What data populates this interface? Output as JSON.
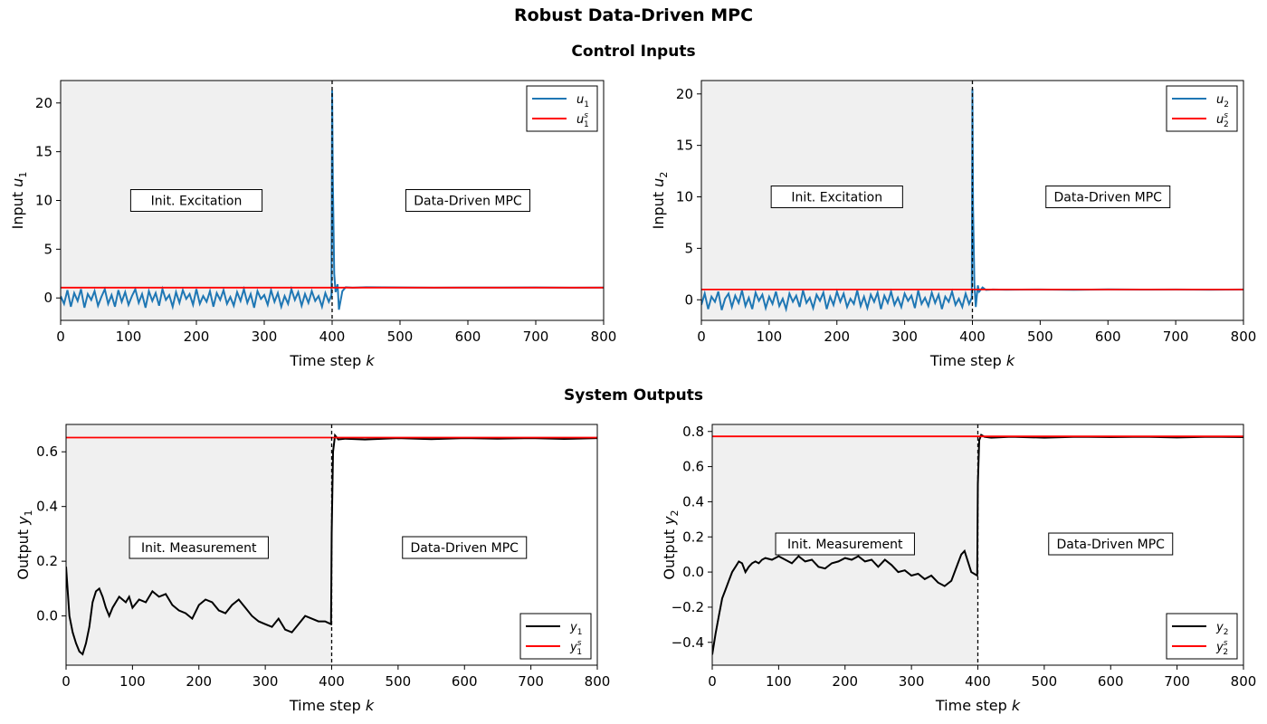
{
  "figure_title": "Robust Data-Driven MPC",
  "row_titles": [
    "Control Inputs",
    "System Outputs"
  ],
  "colors": {
    "input_series": "#1f77b4",
    "setpoint": "#ff0000",
    "output_series": "#000000",
    "excitation_shade": "#f0f0f0"
  },
  "chart_data": [
    {
      "type": "line",
      "ylabel_main": "Input ",
      "ylabel_var": "u",
      "ylabel_sub": "1",
      "xlabel_main": "Time step ",
      "xlabel_var": "k",
      "xlim": [
        0,
        800
      ],
      "ylim": [
        -2.3,
        22.3
      ],
      "xticks": [
        0,
        100,
        200,
        300,
        400,
        500,
        600,
        700,
        800
      ],
      "yticks": [
        0,
        5,
        10,
        15,
        20
      ],
      "switch_at": 400,
      "phase_labels": [
        "Init. Excitation",
        "Data-Driven MPC"
      ],
      "phase_label_y": 10,
      "legend_position": "top-right",
      "series": [
        {
          "name": "u",
          "sub": "1",
          "sup": "",
          "kind": "signal",
          "style": "input",
          "x": [
            0,
            5,
            10,
            15,
            20,
            25,
            30,
            35,
            40,
            45,
            50,
            55,
            60,
            65,
            70,
            75,
            80,
            85,
            90,
            95,
            100,
            105,
            110,
            115,
            120,
            125,
            130,
            135,
            140,
            145,
            150,
            155,
            160,
            165,
            170,
            175,
            180,
            185,
            190,
            195,
            200,
            205,
            210,
            215,
            220,
            225,
            230,
            235,
            240,
            245,
            250,
            255,
            260,
            265,
            270,
            275,
            280,
            285,
            290,
            295,
            300,
            305,
            310,
            315,
            320,
            325,
            330,
            335,
            340,
            345,
            350,
            355,
            360,
            365,
            370,
            375,
            380,
            385,
            390,
            395,
            399,
            400,
            401,
            403,
            405,
            408,
            410,
            415,
            420,
            430,
            450,
            500,
            550,
            600,
            650,
            700,
            750,
            800
          ],
          "y": [
            0.2,
            -0.6,
            0.8,
            -0.9,
            0.5,
            -0.3,
            0.9,
            -1.0,
            0.4,
            -0.2,
            0.7,
            -0.8,
            0.1,
            0.9,
            -0.6,
            0.3,
            -0.9,
            0.8,
            -0.4,
            0.6,
            -0.7,
            0.2,
            0.9,
            -0.5,
            0.4,
            -1.0,
            0.7,
            -0.3,
            0.5,
            -0.8,
            0.9,
            -0.2,
            0.3,
            -0.9,
            0.6,
            -0.5,
            0.8,
            -0.1,
            0.4,
            -0.7,
            0.9,
            -0.6,
            0.2,
            -0.4,
            0.7,
            -0.9,
            0.5,
            -0.2,
            0.8,
            -0.6,
            0.1,
            -0.8,
            0.6,
            -0.3,
            0.9,
            -0.5,
            0.4,
            -1.0,
            0.7,
            -0.1,
            0.3,
            -0.7,
            0.8,
            -0.4,
            0.5,
            -0.9,
            0.2,
            -0.6,
            0.9,
            -0.2,
            0.6,
            -0.8,
            0.4,
            -0.5,
            0.7,
            -0.3,
            0.2,
            -0.9,
            0.5,
            -0.4,
            0.3,
            21.3,
            12.0,
            2.5,
            0.6,
            1.4,
            -1.2,
            0.7,
            1.1,
            1.05,
            1.1,
            1.08,
            1.05,
            1.07,
            1.06,
            1.08,
            1.05,
            1.06
          ]
        },
        {
          "name": "u",
          "sub": "1",
          "sup": "s",
          "kind": "setpoint",
          "style": "setpoint",
          "x": [
            0,
            800
          ],
          "y": [
            1.06,
            1.06
          ]
        }
      ]
    },
    {
      "type": "line",
      "ylabel_main": "Input ",
      "ylabel_var": "u",
      "ylabel_sub": "2",
      "xlabel_main": "Time step ",
      "xlabel_var": "k",
      "xlim": [
        0,
        800
      ],
      "ylim": [
        -2.0,
        21.3
      ],
      "xticks": [
        0,
        100,
        200,
        300,
        400,
        500,
        600,
        700,
        800
      ],
      "yticks": [
        0,
        5,
        10,
        15,
        20
      ],
      "switch_at": 400,
      "phase_labels": [
        "Init. Excitation",
        "Data-Driven MPC"
      ],
      "phase_label_y": 10,
      "legend_position": "top-right",
      "series": [
        {
          "name": "u",
          "sub": "2",
          "sup": "",
          "kind": "signal",
          "style": "input",
          "x": [
            0,
            5,
            10,
            15,
            20,
            25,
            30,
            35,
            40,
            45,
            50,
            55,
            60,
            65,
            70,
            75,
            80,
            85,
            90,
            95,
            100,
            105,
            110,
            115,
            120,
            125,
            130,
            135,
            140,
            145,
            150,
            155,
            160,
            165,
            170,
            175,
            180,
            185,
            190,
            195,
            200,
            205,
            210,
            215,
            220,
            225,
            230,
            235,
            240,
            245,
            250,
            255,
            260,
            265,
            270,
            275,
            280,
            285,
            290,
            295,
            300,
            305,
            310,
            315,
            320,
            325,
            330,
            335,
            340,
            345,
            350,
            355,
            360,
            365,
            370,
            375,
            380,
            385,
            390,
            395,
            399,
            400,
            401,
            403,
            405,
            408,
            410,
            415,
            420,
            430,
            450,
            500,
            550,
            600,
            650,
            700,
            750,
            800
          ],
          "y": [
            -0.5,
            0.6,
            -0.9,
            0.3,
            -0.2,
            0.8,
            -1.0,
            0.1,
            0.6,
            -0.7,
            0.4,
            -0.3,
            0.9,
            -0.6,
            0.2,
            -0.9,
            0.7,
            -0.1,
            0.5,
            -0.8,
            0.3,
            -0.4,
            0.8,
            -0.6,
            0.1,
            -0.9,
            0.6,
            -0.2,
            0.4,
            -0.7,
            0.9,
            -0.3,
            0.2,
            -0.8,
            0.5,
            -0.1,
            0.7,
            -0.9,
            0.3,
            -0.5,
            0.8,
            -0.2,
            0.6,
            -0.7,
            0.1,
            -0.4,
            0.9,
            -0.6,
            0.3,
            -0.8,
            0.5,
            -0.2,
            0.7,
            -0.9,
            0.4,
            -0.3,
            0.8,
            -0.5,
            0.2,
            -0.7,
            0.6,
            -0.1,
            0.4,
            -0.8,
            0.9,
            -0.4,
            0.2,
            -0.6,
            0.7,
            -0.3,
            0.5,
            -0.9,
            0.3,
            -0.2,
            0.8,
            -0.5,
            0.1,
            -0.7,
            0.6,
            -0.4,
            0.2,
            20.5,
            9.0,
            1.5,
            -0.7,
            1.4,
            0.8,
            1.2,
            0.95,
            1.0,
            0.98,
            1.0,
            0.97,
            1.02,
            0.99,
            1.0,
            0.98,
            1.0
          ]
        },
        {
          "name": "u",
          "sub": "2",
          "sup": "s",
          "kind": "setpoint",
          "style": "setpoint",
          "x": [
            0,
            800
          ],
          "y": [
            1.0,
            1.0
          ]
        }
      ]
    },
    {
      "type": "line",
      "ylabel_main": "Output ",
      "ylabel_var": "y",
      "ylabel_sub": "1",
      "xlabel_main": "Time step ",
      "xlabel_var": "k",
      "xlim": [
        0,
        800
      ],
      "ylim": [
        -0.18,
        0.7
      ],
      "xticks": [
        0,
        100,
        200,
        300,
        400,
        500,
        600,
        700,
        800
      ],
      "yticks": [
        0.0,
        0.2,
        0.4,
        0.6
      ],
      "ytick_labels": [
        "0.0",
        "0.2",
        "0.4",
        "0.6"
      ],
      "switch_at": 400,
      "phase_labels": [
        "Init. Measurement",
        "Data-Driven MPC"
      ],
      "phase_label_y": 0.25,
      "legend_position": "bottom-right",
      "series": [
        {
          "name": "y",
          "sub": "1",
          "sup": "",
          "kind": "signal",
          "style": "output",
          "x": [
            0,
            5,
            10,
            15,
            20,
            25,
            30,
            35,
            40,
            45,
            50,
            55,
            60,
            65,
            70,
            75,
            80,
            85,
            90,
            95,
            100,
            110,
            120,
            130,
            140,
            150,
            160,
            170,
            180,
            190,
            200,
            210,
            220,
            230,
            240,
            250,
            260,
            270,
            280,
            290,
            300,
            310,
            320,
            330,
            340,
            350,
            360,
            370,
            380,
            390,
            399,
            400,
            402,
            405,
            410,
            420,
            450,
            500,
            550,
            600,
            650,
            700,
            750,
            800
          ],
          "y": [
            0.18,
            0.0,
            -0.06,
            -0.1,
            -0.13,
            -0.14,
            -0.1,
            -0.04,
            0.05,
            0.09,
            0.1,
            0.07,
            0.03,
            0.0,
            0.03,
            0.05,
            0.07,
            0.06,
            0.05,
            0.07,
            0.03,
            0.06,
            0.05,
            0.09,
            0.07,
            0.08,
            0.04,
            0.02,
            0.01,
            -0.01,
            0.04,
            0.06,
            0.05,
            0.02,
            0.01,
            0.04,
            0.06,
            0.03,
            0.0,
            -0.02,
            -0.03,
            -0.04,
            -0.01,
            -0.05,
            -0.06,
            -0.03,
            0.0,
            -0.01,
            -0.02,
            -0.02,
            -0.03,
            0.3,
            0.6,
            0.66,
            0.645,
            0.648,
            0.645,
            0.65,
            0.646,
            0.65,
            0.648,
            0.65,
            0.647,
            0.65
          ]
        },
        {
          "name": "y",
          "sub": "1",
          "sup": "s",
          "kind": "setpoint",
          "style": "setpoint",
          "x": [
            0,
            800
          ],
          "y": [
            0.652,
            0.652
          ]
        }
      ]
    },
    {
      "type": "line",
      "ylabel_main": "Output ",
      "ylabel_var": "y",
      "ylabel_sub": "2",
      "xlabel_main": "Time step ",
      "xlabel_var": "k",
      "xlim": [
        0,
        800
      ],
      "ylim": [
        -0.53,
        0.84
      ],
      "xticks": [
        0,
        100,
        200,
        300,
        400,
        500,
        600,
        700,
        800
      ],
      "yticks": [
        -0.4,
        -0.2,
        0.0,
        0.2,
        0.4,
        0.6,
        0.8
      ],
      "ytick_labels": [
        "−0.4",
        "−0.2",
        "0.0",
        "0.2",
        "0.4",
        "0.6",
        "0.8"
      ],
      "switch_at": 400,
      "phase_labels": [
        "Init. Measurement",
        "Data-Driven MPC"
      ],
      "phase_label_y": 0.16,
      "legend_position": "bottom-right",
      "series": [
        {
          "name": "y",
          "sub": "2",
          "sup": "",
          "kind": "signal",
          "style": "output",
          "x": [
            0,
            5,
            10,
            15,
            20,
            25,
            30,
            35,
            40,
            45,
            50,
            55,
            60,
            65,
            70,
            75,
            80,
            90,
            100,
            110,
            120,
            130,
            140,
            150,
            160,
            170,
            180,
            190,
            200,
            210,
            220,
            230,
            240,
            250,
            260,
            270,
            280,
            290,
            300,
            310,
            320,
            330,
            340,
            350,
            360,
            370,
            375,
            380,
            390,
            399,
            400,
            402,
            405,
            410,
            420,
            450,
            500,
            550,
            600,
            650,
            700,
            750,
            800
          ],
          "y": [
            -0.47,
            -0.35,
            -0.25,
            -0.15,
            -0.1,
            -0.05,
            0.0,
            0.03,
            0.06,
            0.05,
            0.0,
            0.03,
            0.05,
            0.06,
            0.05,
            0.07,
            0.08,
            0.07,
            0.09,
            0.07,
            0.05,
            0.09,
            0.06,
            0.07,
            0.03,
            0.02,
            0.05,
            0.06,
            0.08,
            0.07,
            0.09,
            0.06,
            0.07,
            0.03,
            0.07,
            0.04,
            0.0,
            0.01,
            -0.02,
            -0.01,
            -0.04,
            -0.02,
            -0.06,
            -0.08,
            -0.05,
            0.05,
            0.1,
            0.12,
            0.0,
            -0.02,
            0.5,
            0.75,
            0.78,
            0.77,
            0.765,
            0.77,
            0.765,
            0.77,
            0.768,
            0.77,
            0.766,
            0.77,
            0.768
          ]
        },
        {
          "name": "y",
          "sub": "2",
          "sup": "s",
          "kind": "setpoint",
          "style": "setpoint",
          "x": [
            0,
            800
          ],
          "y": [
            0.772,
            0.772
          ]
        }
      ]
    }
  ]
}
